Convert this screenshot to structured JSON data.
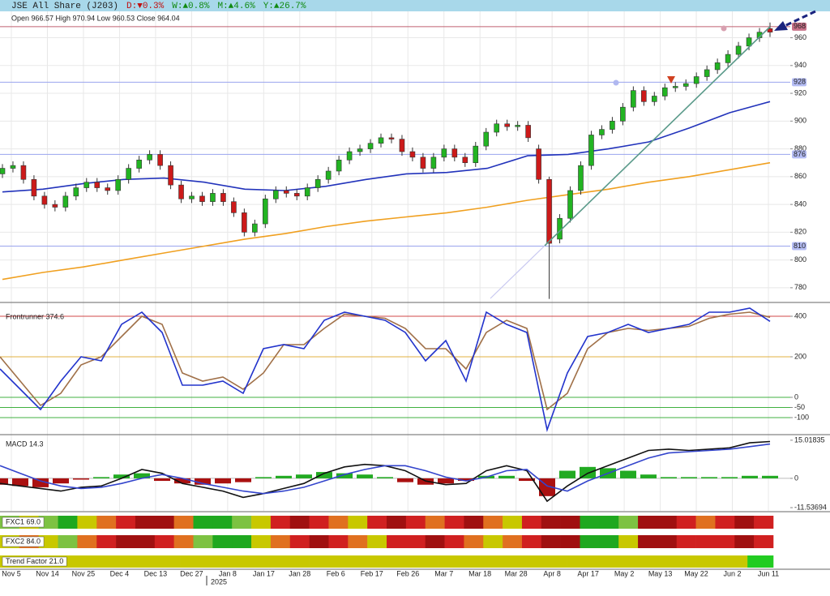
{
  "title_bar": {
    "name": "JSE All Share (J203)",
    "day": "D:▼0.3%",
    "week": "W:▲0.8%",
    "month": "M:▲4.6%",
    "year": "Y:▲26.7%"
  },
  "chart_data": [
    {
      "type": "candlestick",
      "header": "Open 966.57 High 970.94 Low 960.53 Close 964.04",
      "up_color": "#22b422",
      "down_color": "#cc1a1a",
      "open": [
        862,
        866,
        868,
        858,
        846,
        840,
        838,
        846,
        852,
        856,
        852,
        850,
        858,
        866,
        872,
        876,
        868,
        854,
        844,
        846,
        842,
        848,
        842,
        834,
        820,
        826,
        844,
        850,
        848,
        846,
        852,
        858,
        864,
        872,
        878,
        880,
        884,
        888,
        887,
        878,
        874,
        866,
        874,
        880,
        874,
        870,
        882,
        892,
        898,
        896,
        897,
        880,
        858,
        815,
        830,
        850,
        868,
        890,
        894,
        900,
        910,
        922,
        914,
        918,
        924,
        925,
        927,
        932,
        937,
        942,
        948,
        954,
        960,
        966.57
      ],
      "high": [
        869,
        871,
        871,
        861,
        849,
        843,
        849,
        855,
        859,
        859,
        855,
        861,
        869,
        875,
        879,
        879,
        871,
        857,
        849,
        849,
        851,
        851,
        845,
        837,
        829,
        847,
        853,
        853,
        851,
        855,
        861,
        867,
        875,
        881,
        883,
        887,
        891,
        891,
        890,
        881,
        877,
        877,
        883,
        883,
        877,
        885,
        895,
        901,
        901,
        900,
        900,
        883,
        860,
        833,
        853,
        871,
        893,
        897,
        903,
        913,
        925,
        925,
        921,
        927,
        928,
        930,
        935,
        940,
        945,
        951,
        957,
        963,
        967,
        970.94
      ],
      "low": [
        859,
        863,
        855,
        843,
        837,
        835,
        835,
        843,
        849,
        849,
        847,
        847,
        855,
        863,
        869,
        865,
        851,
        841,
        841,
        839,
        839,
        839,
        831,
        817,
        817,
        823,
        841,
        845,
        843,
        843,
        849,
        855,
        861,
        869,
        875,
        877,
        881,
        884,
        875,
        871,
        863,
        863,
        871,
        871,
        867,
        867,
        879,
        889,
        893,
        893,
        885,
        855,
        772,
        812,
        827,
        847,
        865,
        887,
        891,
        897,
        907,
        911,
        911,
        915,
        921,
        922,
        924,
        929,
        934,
        939,
        945,
        951,
        957,
        960.53
      ],
      "close": [
        866,
        868,
        858,
        846,
        840,
        838,
        846,
        852,
        856,
        852,
        850,
        858,
        866,
        872,
        876,
        868,
        854,
        844,
        846,
        842,
        848,
        842,
        834,
        820,
        826,
        844,
        850,
        848,
        846,
        852,
        858,
        864,
        872,
        878,
        880,
        884,
        888,
        887,
        878,
        874,
        866,
        874,
        880,
        874,
        870,
        882,
        892,
        898,
        896,
        897,
        888,
        858,
        812,
        830,
        850,
        868,
        890,
        894,
        900,
        910,
        922,
        914,
        918,
        924,
        925,
        927,
        932,
        937,
        942,
        948,
        954,
        960,
        964,
        964.04
      ],
      "series": [
        {
          "color": "#2233bb",
          "values": [
            849,
            851,
            855,
            858,
            859,
            856,
            851,
            850,
            853,
            858,
            862,
            863,
            866,
            875,
            876,
            880,
            885,
            895,
            906,
            914
          ]
        },
        {
          "color": "#f0a020",
          "values": [
            786,
            791,
            795,
            800,
            805,
            810,
            815,
            819,
            824,
            828,
            831,
            834,
            838,
            843,
            847,
            851,
            856,
            860,
            865,
            870
          ]
        }
      ],
      "levels": [
        {
          "value": 968,
          "color": "#c06070",
          "box": "#c87088"
        },
        {
          "value": 928,
          "color": "#9aa4ee",
          "box": "#b4bcf4"
        },
        {
          "value": 876,
          "color": "#9aa4ee",
          "box": "#b4bcf4"
        },
        {
          "value": 810,
          "color": "#9aa4ee",
          "box": "#b4bcf4"
        }
      ],
      "ylim": [
        770,
        979
      ],
      "yticks": [
        780,
        800,
        820,
        840,
        860,
        880,
        900,
        920,
        940,
        960
      ],
      "grid": true
    },
    {
      "type": "line",
      "title": "Frontrunner 374.6",
      "series": [
        {
          "color": "#2233cc",
          "values": [
            140,
            40,
            -60,
            80,
            200,
            180,
            360,
            420,
            320,
            60,
            60,
            80,
            20,
            240,
            260,
            240,
            380,
            420,
            400,
            380,
            320,
            180,
            280,
            80,
            420,
            360,
            320,
            -160,
            120,
            300,
            320,
            360,
            320,
            340,
            360,
            420,
            420,
            440,
            375
          ]
        },
        {
          "color": "#a07048",
          "values": [
            200,
            80,
            -40,
            20,
            160,
            200,
            300,
            400,
            360,
            120,
            80,
            100,
            40,
            120,
            260,
            260,
            340,
            410,
            400,
            390,
            340,
            240,
            240,
            140,
            320,
            380,
            340,
            -60,
            20,
            240,
            320,
            340,
            330,
            340,
            350,
            390,
            410,
            420,
            395
          ]
        }
      ],
      "levels": [
        {
          "value": 400,
          "color": "#d04848"
        },
        {
          "value": 200,
          "color": "#e0b040"
        },
        {
          "value": 0,
          "color": "#40b040"
        },
        {
          "value": -50,
          "color": "#40b040"
        },
        {
          "value": -100,
          "color": "#40b040"
        }
      ],
      "ylim": [
        -180,
        464
      ],
      "yticks": [
        -100,
        -50,
        0,
        200,
        400
      ]
    },
    {
      "type": "macd",
      "title": "MACD 14.3",
      "series": [
        {
          "color": "#111111",
          "values": [
            -2,
            -3,
            -4,
            -5,
            -3.5,
            -3,
            0,
            3.5,
            2,
            -2,
            -3.5,
            -5,
            -7.5,
            -6,
            -4,
            -2,
            2,
            4.5,
            5.5,
            5,
            3,
            -1,
            -2.5,
            -2,
            3,
            5,
            3,
            -9,
            -3,
            2,
            5,
            8,
            11,
            11.5,
            11,
            11.5,
            12,
            14,
            14.5
          ]
        },
        {
          "color": "#3344cc",
          "values": [
            5,
            2,
            -1,
            -3,
            -4,
            -3.5,
            -2,
            0,
            1.5,
            0,
            -2,
            -3.5,
            -5,
            -6,
            -5,
            -3.5,
            -1,
            1.5,
            3.5,
            5,
            5,
            3,
            0.5,
            -1,
            0.5,
            3,
            3.5,
            -3,
            -5,
            -1,
            2,
            5,
            8,
            10,
            10.5,
            11,
            11.5,
            12.5,
            13.5
          ]
        }
      ],
      "histogram": [
        -2.5,
        -3,
        -3.5,
        -2,
        -0.5,
        0.5,
        1.5,
        2,
        -1,
        -2,
        -2.5,
        -2,
        -1.5,
        0.5,
        1,
        1.5,
        2.5,
        2,
        1.5,
        0.5,
        -1.5,
        -2.5,
        -2,
        -1,
        1,
        1,
        -1,
        -7,
        3,
        4.5,
        4,
        3,
        1.5,
        0.5,
        0.5,
        0.5,
        0.5,
        1,
        1
      ],
      "up_color": "#22aa22",
      "down_color": "#aa1111",
      "ylim": [
        -12.8,
        16.9
      ],
      "yticks": [
        -11.53694,
        0,
        15.01835
      ]
    }
  ],
  "heat_strips": [
    {
      "label": "FXC1 69.0",
      "colors": [
        "#7dc242",
        "#c8c800",
        "#7dc242",
        "#1fa81f",
        "#c8c800",
        "#e07020",
        "#d02020",
        "#a01010",
        "#a01010",
        "#e07020",
        "#1fa81f",
        "#1fa81f",
        "#7dc242",
        "#c8c800",
        "#d02020",
        "#a01010",
        "#d02020",
        "#e07020",
        "#c8c800",
        "#d02020",
        "#a01010",
        "#d02020",
        "#e07020",
        "#d02020",
        "#a01010",
        "#e07020",
        "#c8c800",
        "#d02020",
        "#a01010",
        "#a01010",
        "#1fa81f",
        "#1fa81f",
        "#7dc242",
        "#a01010",
        "#a01010",
        "#d02020",
        "#e07020",
        "#d02020",
        "#a01010",
        "#d02020"
      ]
    },
    {
      "label": "FXC2 84.0",
      "colors": [
        "#c8c800",
        "#e07020",
        "#c8c800",
        "#7dc242",
        "#e07020",
        "#d02020",
        "#a01010",
        "#a01010",
        "#d02020",
        "#e07020",
        "#7dc242",
        "#1fa81f",
        "#1fa81f",
        "#c8c800",
        "#e07020",
        "#d02020",
        "#a01010",
        "#d02020",
        "#e07020",
        "#c8c800",
        "#d02020",
        "#d02020",
        "#a01010",
        "#d02020",
        "#e07020",
        "#c8c800",
        "#e07020",
        "#d02020",
        "#a01010",
        "#a01010",
        "#1fa81f",
        "#1fa81f",
        "#c8c800",
        "#a01010",
        "#a01010",
        "#d02020",
        "#d02020",
        "#d02020",
        "#a01010",
        "#d02020"
      ]
    },
    {
      "label": "Trend Factor 21.0",
      "colors": [
        "#c8c800",
        "#c8c800",
        "#c8c800",
        "#c8c800",
        "#c8c800",
        "#c8c800",
        "#c8c800",
        "#c8c800",
        "#c8c800",
        "#c8c800",
        "#c8c800",
        "#c8c800",
        "#c8c800",
        "#c8c800",
        "#c8c800",
        "#c8c800",
        "#c8c800",
        "#c8c800",
        "#c8c800",
        "#c8c800",
        "#c8c800",
        "#c8c800",
        "#c8c800",
        "#c8c800",
        "#c8c800",
        "#c8c800",
        "#c8c800",
        "#c8c800",
        "#c8c800",
        "#22cc22"
      ]
    }
  ],
  "x_axis": {
    "labels": [
      "Nov 5",
      "Nov 14",
      "Nov 25",
      "Dec 4",
      "Dec 13",
      "Dec 27",
      "Jan 8",
      "Jan 17",
      "Jan 28",
      "Feb 6",
      "Feb 17",
      "Feb 26",
      "Mar 7",
      "Mar 18",
      "Mar 28",
      "Apr 8",
      "Apr 17",
      "May 2",
      "May 13",
      "May 22",
      "Jun 2",
      "Jun 11"
    ],
    "year": "2025"
  }
}
